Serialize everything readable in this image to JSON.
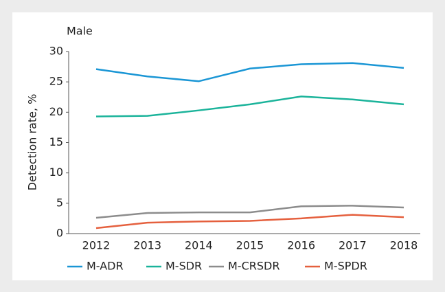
{
  "chart_data": {
    "type": "line",
    "title": "Male",
    "y_label": "Detection rate, %",
    "categories": [
      "2012",
      "2013",
      "2014",
      "2015",
      "2016",
      "2017",
      "2018"
    ],
    "ylim": [
      0,
      30
    ],
    "yticks": [
      0,
      5,
      10,
      15,
      20,
      25,
      30
    ],
    "grid": false,
    "legend": "bottom",
    "series": [
      {
        "name": "M-ADR",
        "color": "#1a96d5",
        "values": [
          27.1,
          25.9,
          25.1,
          27.2,
          27.9,
          28.1,
          27.3
        ]
      },
      {
        "name": "M-SDR",
        "color": "#1ab39a",
        "values": [
          19.3,
          19.4,
          20.3,
          21.3,
          22.6,
          22.1,
          21.3
        ]
      },
      {
        "name": "M-CRSDR",
        "color": "#8c8c8c",
        "values": [
          2.6,
          3.4,
          3.5,
          3.5,
          4.5,
          4.6,
          4.3
        ]
      },
      {
        "name": "M-SPDR",
        "color": "#e5603e",
        "values": [
          0.9,
          1.8,
          2.0,
          2.1,
          2.5,
          3.1,
          2.7
        ]
      }
    ]
  }
}
